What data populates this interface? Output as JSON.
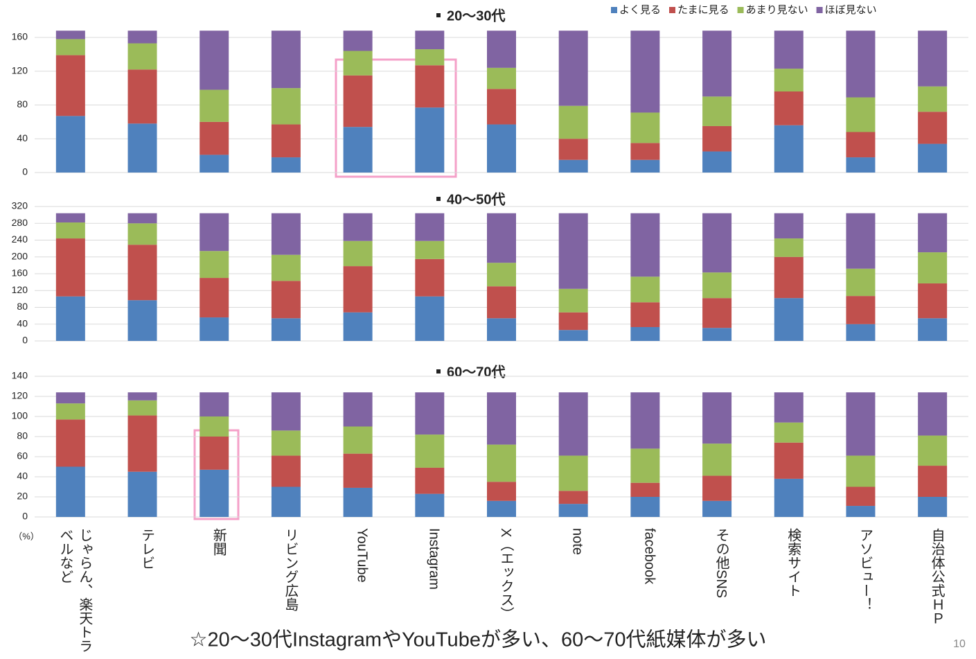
{
  "chart_data": [
    {
      "type": "bar",
      "stacked": true,
      "title": "20～30代",
      "series": [
        {
          "name": "よく見る",
          "color": "#4f81bd",
          "values": [
            67,
            58,
            21,
            18,
            54,
            77,
            57,
            15,
            15,
            25,
            56,
            18,
            34
          ]
        },
        {
          "name": "たまに見る",
          "color": "#c0504d",
          "values": [
            72,
            64,
            39,
            39,
            61,
            50,
            42,
            25,
            20,
            30,
            40,
            30,
            38
          ]
        },
        {
          "name": "あまり見ない",
          "color": "#9bbb59",
          "values": [
            19,
            31,
            38,
            43,
            29,
            19,
            25,
            39,
            36,
            35,
            27,
            41,
            30
          ]
        },
        {
          "name": "ほぼ見ない",
          "color": "#8064a2",
          "values": [
            10,
            15,
            70,
            68,
            24,
            22,
            44,
            89,
            97,
            78,
            45,
            79,
            66
          ]
        }
      ],
      "ylim": [
        0,
        160
      ],
      "yticks": [
        0,
        40,
        80,
        120,
        160
      ],
      "grid": true
    },
    {
      "type": "bar",
      "stacked": true,
      "title": "40～50代",
      "series": [
        {
          "color": "#4f81bd",
          "values": [
            106,
            97,
            56,
            54,
            68,
            106,
            54,
            26,
            33,
            31,
            102,
            40,
            54
          ]
        },
        {
          "color": "#c0504d",
          "values": [
            138,
            132,
            94,
            89,
            110,
            89,
            76,
            42,
            59,
            71,
            98,
            67,
            83
          ]
        },
        {
          "color": "#9bbb59",
          "values": [
            38,
            51,
            64,
            62,
            60,
            43,
            56,
            56,
            61,
            61,
            44,
            65,
            74
          ]
        },
        {
          "color": "#8064a2",
          "values": [
            22,
            24,
            90,
            99,
            66,
            66,
            118,
            180,
            151,
            141,
            60,
            132,
            93
          ]
        }
      ],
      "ylim": [
        0,
        320
      ],
      "yticks": [
        0,
        40,
        80,
        120,
        160,
        200,
        240,
        280,
        320
      ],
      "grid": true
    },
    {
      "type": "bar",
      "stacked": true,
      "title": "60～70代",
      "categories": [
        "じゃらん、楽天トラベルなど",
        "テレビ",
        "新聞",
        "リビング広島",
        "YouTube",
        "Instagram",
        "X（エックス）",
        "note",
        "facebook",
        "その他SNS",
        "検索サイト",
        "アソビュー！",
        "自治体公式ＨＰ"
      ],
      "x_axis_label": "（%）",
      "series": [
        {
          "color": "#4f81bd",
          "values": [
            50,
            45,
            47,
            30,
            29,
            23,
            16,
            13,
            20,
            16,
            38,
            11,
            20
          ]
        },
        {
          "color": "#c0504d",
          "values": [
            47,
            56,
            33,
            31,
            34,
            26,
            19,
            13,
            14,
            25,
            36,
            19,
            31
          ]
        },
        {
          "color": "#9bbb59",
          "values": [
            16,
            15,
            20,
            25,
            27,
            33,
            37,
            35,
            34,
            32,
            20,
            31,
            30
          ]
        },
        {
          "color": "#8064a2",
          "values": [
            11,
            8,
            24,
            38,
            34,
            42,
            52,
            63,
            56,
            51,
            30,
            63,
            43
          ]
        }
      ],
      "ylim": [
        0,
        140
      ],
      "yticks": [
        0,
        20,
        40,
        60,
        80,
        100,
        120,
        140
      ],
      "grid": true
    }
  ],
  "footnote": "☆20～30代InstagramやYouTubeが多い、60～70代紙媒体が多い",
  "page_number": "10"
}
